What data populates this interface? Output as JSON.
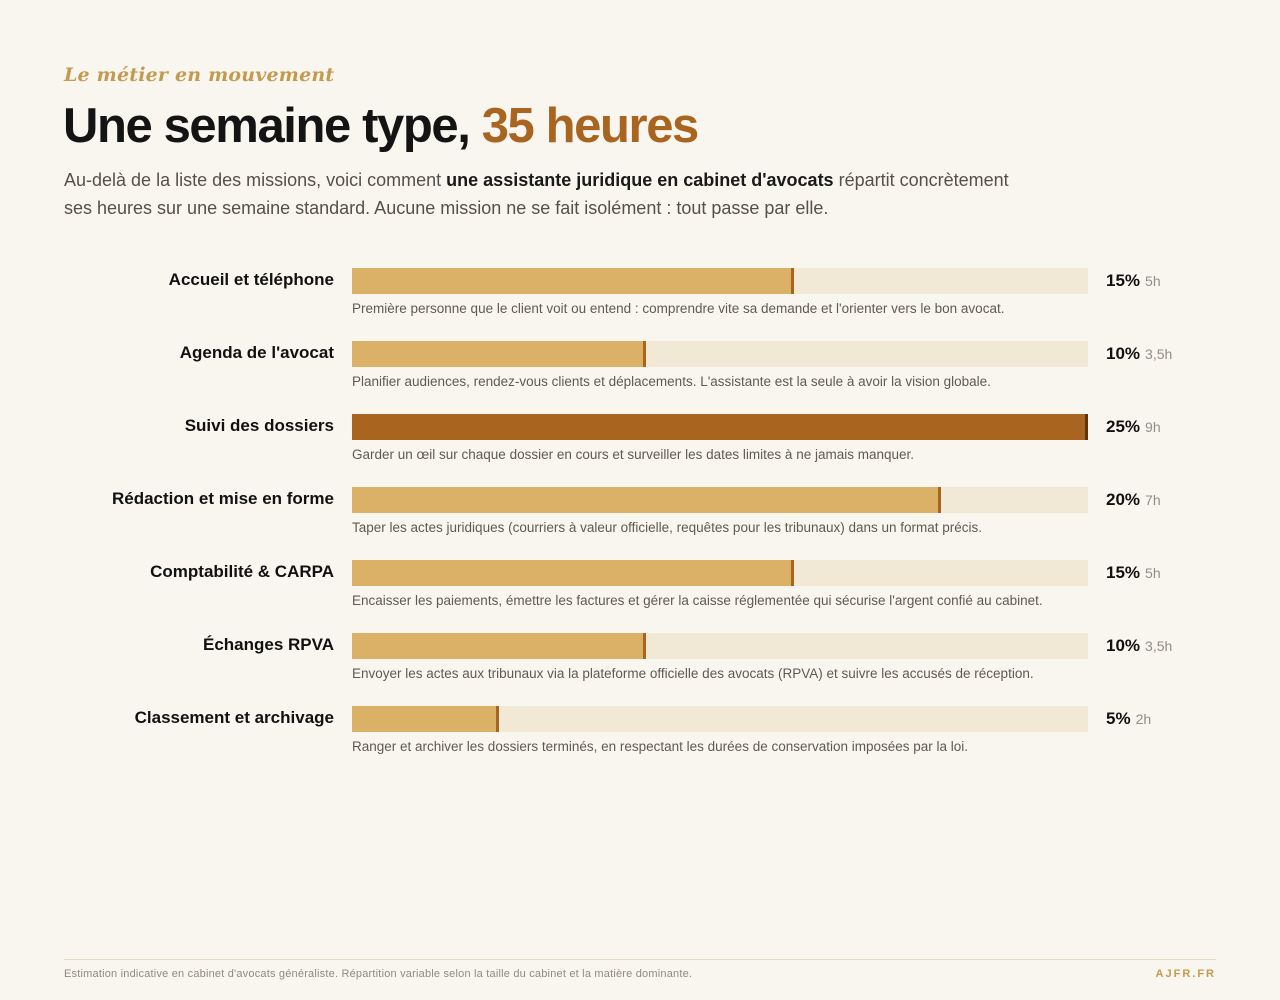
{
  "header": {
    "kicker": "Le métier en mouvement",
    "title_main": "Une semaine type, ",
    "title_accent": "35 heures",
    "lead_before": "Au-delà de la liste des missions, voici comment ",
    "lead_bold": "une assistante juridique en cabinet d'avocats",
    "lead_after": " répartit concrètement ses heures sur une semaine standard. Aucune mission ne se fait isolément : tout passe par elle."
  },
  "chart_data": {
    "type": "bar",
    "orientation": "horizontal",
    "title": "Une semaine type, 35 heures",
    "xlim": [
      0,
      25
    ],
    "categories": [
      "Accueil et téléphone",
      "Agenda de l'avocat",
      "Suivi des dossiers",
      "Rédaction et mise en forme",
      "Comptabilité & CARPA",
      "Échanges RPVA",
      "Classement et archivage"
    ],
    "values": [
      15,
      10,
      25,
      20,
      15,
      10,
      5
    ],
    "value_labels": [
      "15%",
      "10%",
      "25%",
      "20%",
      "15%",
      "10%",
      "5%"
    ],
    "hours_labels": [
      "5h",
      "3,5h",
      "9h",
      "7h",
      "5h",
      "3,5h",
      "2h"
    ],
    "descriptions": [
      "Première personne que le client voit ou entend : comprendre vite sa demande et l'orienter vers le bon avocat.",
      "Planifier audiences, rendez-vous clients et déplacements. L'assistante est la seule à avoir la vision globale.",
      "Garder un œil sur chaque dossier en cours et surveiller les dates limites à ne jamais manquer.",
      "Taper les actes juridiques (courriers à valeur officielle, requêtes pour les tribunaux) dans un format précis.",
      "Encaisser les paiements, émettre les factures et gérer la caisse réglementée qui sécurise l'argent confié au cabinet.",
      "Envoyer les actes aux tribunaux via la plateforme officielle des avocats (RPVA) et suivre les accusés de réception.",
      "Ranger et archiver les dossiers terminés, en respectant les durées de conservation imposées par la loi."
    ],
    "colors": {
      "bar": "#dbb167",
      "bar_max": "#a9641f",
      "track": "#f2e8d6",
      "marker": "#a9641f"
    },
    "grid": false,
    "legend": "none"
  },
  "footer": {
    "note": "Estimation indicative en cabinet d'avocats généraliste. Répartition variable selon la taille du cabinet et la matière dominante.",
    "brand": "AJFR.FR"
  }
}
